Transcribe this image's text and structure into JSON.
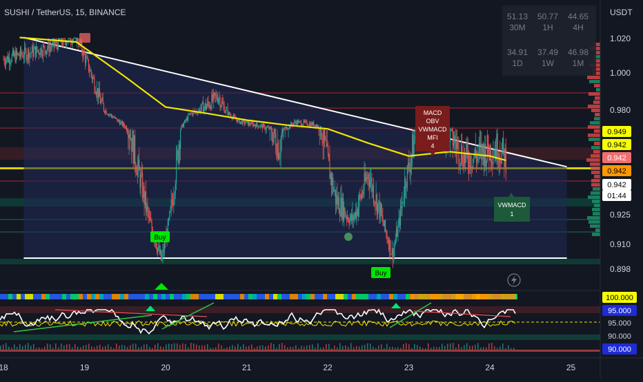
{
  "header": {
    "symbol_title": "SUSHI / TetherUS, 15, BINANCE",
    "currency": "USDT"
  },
  "mtf_table": [
    {
      "value": "51.13",
      "tf": "30M"
    },
    {
      "value": "50.77",
      "tf": "1H"
    },
    {
      "value": "44.65",
      "tf": "4H"
    },
    {
      "value": "34.91",
      "tf": "1D"
    },
    {
      "value": "37.49",
      "tf": "1W"
    },
    {
      "value": "46.98",
      "tf": "1M"
    }
  ],
  "price_axis": {
    "ticks": [
      "1.020",
      "1.000",
      "0.980",
      "0.925",
      "0.910",
      "0.898"
    ]
  },
  "price_labels": [
    {
      "text": "0.949",
      "bg": "#f7ff00",
      "color": "#000000"
    },
    {
      "text": "0.942",
      "bg": "#f7ff00",
      "color": "#000000"
    },
    {
      "text": "0.942",
      "bg": "#f06f6f",
      "color": "#ffffff"
    },
    {
      "text": "0.942",
      "bg": "#ff9800",
      "color": "#000000"
    },
    {
      "text": "0.942",
      "bg": "#ffffff",
      "color": "#000000"
    },
    {
      "text": "01:44",
      "bg": "#ffffff",
      "color": "#000000"
    }
  ],
  "osc_labels": [
    {
      "text": "100.000",
      "bg": "#f7ff00",
      "color": "#000000"
    },
    {
      "text": "95.000",
      "bg": "#1e2bd6",
      "color": "#ffffff"
    },
    {
      "text": "95.000",
      "bg": "#131722",
      "color": "#d1d4dc"
    },
    {
      "text": "90.000",
      "bg": "#131722",
      "color": "#d1d4dc"
    },
    {
      "text": "90.000",
      "bg": "#1e2bd6",
      "color": "#ffffff"
    }
  ],
  "time_axis": {
    "ticks": [
      "18",
      "19",
      "20",
      "21",
      "22",
      "23",
      "24",
      "25"
    ]
  },
  "signals": {
    "buy_label": "Buy",
    "macd_box": [
      "MACD",
      "OBV",
      "VWMACD",
      "MFI",
      "4"
    ],
    "vwmacd_box": [
      "VWMACD",
      "1"
    ]
  },
  "colors": {
    "background": "#131722",
    "up": "#26a69a",
    "down": "#ef5350",
    "ma": "#f2e600",
    "trendline": "#ffffff",
    "buy": "#00e600",
    "macd_box": "#7a1c1c",
    "vwmacd_box": "#1c5a3a"
  },
  "chart_data": {
    "type": "candlestick",
    "title": "SUSHI / TetherUS, 15, BINANCE",
    "x_ticks": [
      "18",
      "19",
      "20",
      "21",
      "22",
      "23",
      "24",
      "25"
    ],
    "y_ticks": [
      1.02,
      1.0,
      0.98,
      0.925,
      0.91,
      0.898
    ],
    "ylim": [
      0.892,
      1.034
    ],
    "key_points": [
      {
        "day": 18.0,
        "price": 1.008
      },
      {
        "day": 18.5,
        "price": 1.014
      },
      {
        "day": 18.9,
        "price": 1.022
      },
      {
        "day": 19.2,
        "price": 0.985
      },
      {
        "day": 19.7,
        "price": 0.935
      },
      {
        "day": 19.95,
        "price": 0.902
      },
      {
        "day": 20.3,
        "price": 0.975
      },
      {
        "day": 20.65,
        "price": 0.988
      },
      {
        "day": 20.9,
        "price": 0.963
      },
      {
        "day": 21.2,
        "price": 0.955
      },
      {
        "day": 21.4,
        "price": 0.945
      },
      {
        "day": 21.6,
        "price": 0.962
      },
      {
        "day": 21.85,
        "price": 0.958
      },
      {
        "day": 22.1,
        "price": 0.93
      },
      {
        "day": 22.3,
        "price": 0.922
      },
      {
        "day": 22.5,
        "price": 0.938
      },
      {
        "day": 22.65,
        "price": 0.925
      },
      {
        "day": 22.8,
        "price": 0.905
      },
      {
        "day": 22.95,
        "price": 0.935
      },
      {
        "day": 23.15,
        "price": 0.955
      },
      {
        "day": 23.4,
        "price": 0.952
      },
      {
        "day": 23.7,
        "price": 0.942
      },
      {
        "day": 23.95,
        "price": 0.944
      },
      {
        "day": 24.1,
        "price": 0.945
      },
      {
        "day": 24.2,
        "price": 0.942
      }
    ],
    "ma_points": [
      {
        "day": 18.2,
        "price": 1.026
      },
      {
        "day": 18.9,
        "price": 1.018
      },
      {
        "day": 19.5,
        "price": 0.998
      },
      {
        "day": 20.0,
        "price": 0.982
      },
      {
        "day": 20.5,
        "price": 0.976
      },
      {
        "day": 21.0,
        "price": 0.965
      },
      {
        "day": 21.5,
        "price": 0.957
      },
      {
        "day": 22.0,
        "price": 0.951
      },
      {
        "day": 22.5,
        "price": 0.946
      },
      {
        "day": 23.0,
        "price": 0.943
      },
      {
        "day": 23.5,
        "price": 0.944
      },
      {
        "day": 24.0,
        "price": 0.943
      },
      {
        "day": 24.2,
        "price": 0.942
      }
    ],
    "triangle": {
      "top_start": {
        "day": 18.25,
        "price": 1.026
      },
      "top_end": {
        "day": 24.95,
        "price": 0.94
      },
      "bottom_start": {
        "day": 18.25,
        "price": 0.9
      },
      "bottom_end": {
        "day": 24.95,
        "price": 0.9
      }
    }
  }
}
